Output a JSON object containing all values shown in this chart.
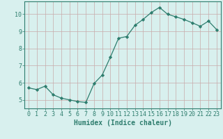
{
  "x": [
    0,
    1,
    2,
    3,
    4,
    5,
    6,
    7,
    8,
    9,
    10,
    11,
    12,
    13,
    14,
    15,
    16,
    17,
    18,
    19,
    20,
    21,
    22,
    23
  ],
  "y": [
    5.7,
    5.6,
    5.8,
    5.3,
    5.1,
    5.0,
    4.9,
    4.85,
    5.95,
    6.45,
    7.5,
    8.6,
    8.7,
    9.35,
    9.7,
    10.1,
    10.4,
    10.0,
    9.85,
    9.7,
    9.5,
    9.3,
    9.6,
    9.1
  ],
  "line_color": "#2e7d6e",
  "marker": "D",
  "marker_size": 2.2,
  "bg_color": "#d8f0ee",
  "grid_color": "#c8aaaa",
  "axis_color": "#2e7d6e",
  "xlabel": "Humidex (Indice chaleur)",
  "xlabel_fontsize": 7,
  "tick_fontsize": 6,
  "ylim": [
    4.5,
    10.75
  ],
  "xlim": [
    -0.5,
    23.5
  ],
  "yticks": [
    5,
    6,
    7,
    8,
    9,
    10
  ],
  "xticks": [
    0,
    1,
    2,
    3,
    4,
    5,
    6,
    7,
    8,
    9,
    10,
    11,
    12,
    13,
    14,
    15,
    16,
    17,
    18,
    19,
    20,
    21,
    22,
    23
  ]
}
